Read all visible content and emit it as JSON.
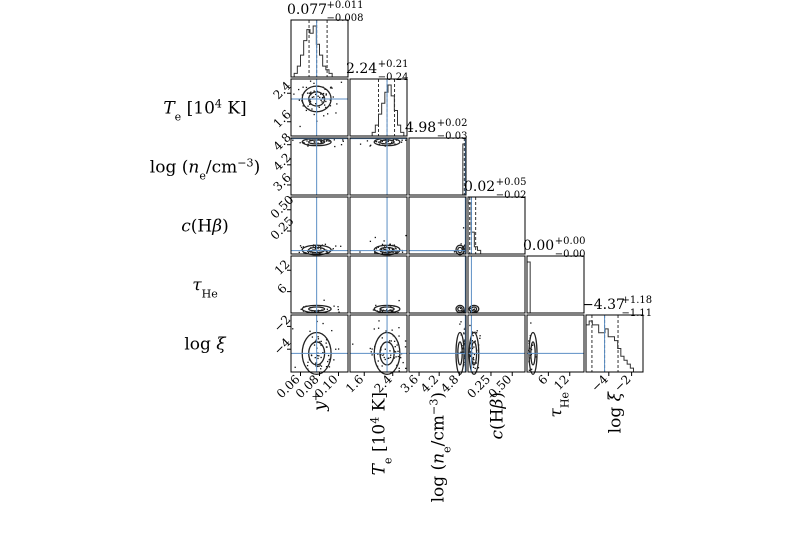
{
  "chart_data": {
    "type": "scatter",
    "kind": "corner-plot",
    "parameters": [
      {
        "key": "y",
        "name": "y",
        "sup": "+",
        "sub": "",
        "range": [
          0.05,
          0.11
        ],
        "ticks": [
          0.06,
          0.08,
          0.1
        ],
        "tick_labels": [
          "0.06",
          "0.08",
          "0.10"
        ],
        "truth": 0.077,
        "summary": {
          "value": "0.077",
          "plus": "+0.011",
          "minus": "−0.008"
        },
        "hist": [
          0,
          1,
          3,
          6,
          10,
          13,
          12,
          14,
          9,
          6,
          3,
          2,
          1,
          0,
          0,
          0,
          0,
          0
        ],
        "quantiles": [
          0.069,
          0.077,
          0.088
        ]
      },
      {
        "key": "Te",
        "name": "T",
        "sub": "e",
        "suffix": " [10",
        "sup2": "4",
        "unit": " K]",
        "range": [
          1.2,
          2.8
        ],
        "ticks": [
          1.6,
          2.4
        ],
        "tick_labels": [
          "1.6",
          "2.4"
        ],
        "truth": 2.24,
        "summary": {
          "value": "2.24",
          "plus": "+0.21",
          "minus": "−0.24"
        },
        "hist": [
          0,
          0,
          0,
          0,
          0,
          0,
          0,
          1,
          3,
          6,
          9,
          12,
          14,
          11,
          7,
          3,
          1,
          0
        ],
        "quantiles": [
          2.0,
          2.24,
          2.45
        ]
      },
      {
        "key": "ne",
        "name": "log (n",
        "sub": "e",
        "unit": "/cm",
        "sup2": "−3",
        "close": ")",
        "range": [
          3.3,
          5.0
        ],
        "ticks": [
          3.6,
          4.2,
          4.8
        ],
        "tick_labels": [
          "3.6",
          "4.2",
          "4.8"
        ],
        "truth": 4.98,
        "summary": {
          "value": "4.98",
          "plus": "+0.02",
          "minus": "−0.03"
        },
        "hist": [
          0,
          0,
          0,
          0,
          0,
          0,
          0,
          0,
          0,
          0,
          0,
          0,
          0,
          0,
          0,
          0,
          0,
          14
        ],
        "quantiles": [
          4.95,
          4.98,
          5.0
        ]
      },
      {
        "key": "cHb",
        "name": "c(Hβ)",
        "range": [
          -0.02,
          0.65
        ],
        "ticks": [
          0.25,
          0.5
        ],
        "tick_labels": [
          "0.25",
          "0.50"
        ],
        "truth": 0.02,
        "summary": {
          "value": "0.02",
          "plus": "+0.05",
          "minus": "−0.02"
        },
        "hist": [
          14,
          6,
          2,
          1,
          0,
          0,
          0,
          0,
          0,
          0,
          0,
          0,
          0,
          0,
          0,
          0,
          0,
          0
        ],
        "quantiles": [
          0.0,
          0.02,
          0.07
        ]
      },
      {
        "key": "tau",
        "name": "τ",
        "sub": "He",
        "range": [
          0,
          16
        ],
        "ticks": [
          6,
          12
        ],
        "tick_labels": [
          "6",
          "12"
        ],
        "truth": 0.0,
        "summary": {
          "value": "0.00",
          "plus": "+0.00",
          "minus": "−0.00"
        },
        "hist": [
          14,
          0,
          0,
          0,
          0,
          0,
          0,
          0,
          0,
          0,
          0,
          0,
          0,
          0,
          0,
          0,
          0,
          0
        ],
        "quantiles": [
          0.0,
          0.0,
          0.0
        ]
      },
      {
        "key": "xi",
        "name": "log ξ",
        "range": [
          -6,
          -1
        ],
        "ticks": [
          -4,
          -2
        ],
        "tick_labels": [
          "−4",
          "−2"
        ],
        "truth": -4.37,
        "summary": {
          "value": "−4.37",
          "plus": "+1.18",
          "minus": "−1.11"
        },
        "hist": [
          12,
          13,
          12,
          12,
          10,
          10,
          11,
          9,
          9,
          8,
          6,
          4,
          3,
          2,
          1,
          0,
          0,
          0
        ],
        "quantiles": [
          -5.48,
          -4.37,
          -3.19
        ]
      }
    ],
    "truth_color": "#5b8ec4",
    "grid": false,
    "legend": "none"
  }
}
